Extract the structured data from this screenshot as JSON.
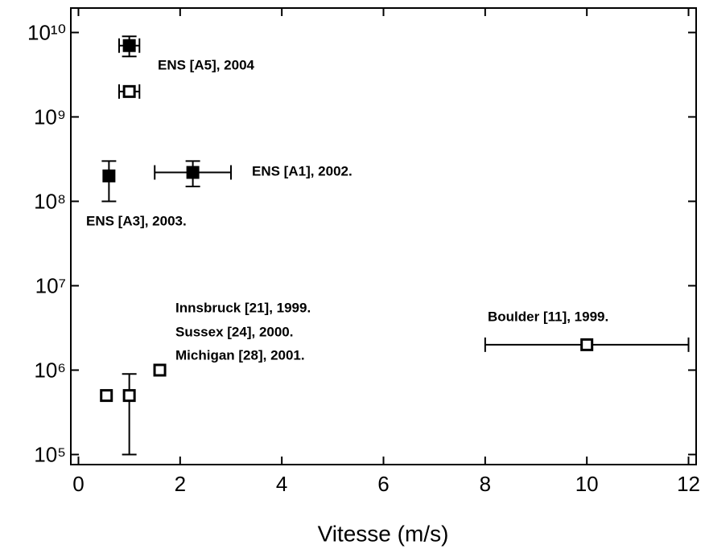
{
  "chart_data": {
    "type": "scatter",
    "x_label": "Vitesse (m/s)",
    "ylog": true,
    "xlim": [
      -0.15,
      12.15
    ],
    "ylim": [
      76000,
      19500000000
    ],
    "xticks": [
      0,
      2,
      4,
      6,
      8,
      10,
      12
    ],
    "yticks": [
      {
        "value": 100000,
        "label": "10⁵"
      },
      {
        "value": 1000000,
        "label": "10⁶"
      },
      {
        "value": 10000000,
        "label": "10⁷"
      },
      {
        "value": 100000000,
        "label": "10⁸"
      },
      {
        "value": 1000000000,
        "label": "10⁹"
      },
      {
        "value": 10000000000,
        "label": "10¹⁰"
      }
    ],
    "series": [
      {
        "color": "#000000",
        "filled": true,
        "x": [
          1.0,
          0.6,
          2.25
        ],
        "values": [
          7000000000,
          200000000,
          220000000
        ],
        "xerr": [
          [
            0.2,
            0.2
          ],
          [
            0,
            0
          ],
          [
            0.75,
            0.75
          ]
        ],
        "yerr": [
          [
            1800000000,
            2000000000
          ],
          [
            100000000,
            100000000
          ],
          [
            70000000,
            80000000
          ]
        ]
      },
      {
        "color": "#000000",
        "filled": false,
        "x": [
          1.0,
          0.55,
          1.0,
          1.6,
          10
        ],
        "values": [
          2000000000,
          500000,
          500000,
          1000000,
          2000000
        ],
        "xerr": [
          [
            0.2,
            0.2
          ],
          [
            0,
            0
          ],
          [
            0,
            0
          ],
          [
            0,
            0
          ],
          [
            2,
            2
          ]
        ],
        "yerr": [
          [
            0,
            0
          ],
          [
            0,
            0
          ],
          [
            400000,
            400000
          ],
          [
            0,
            0
          ],
          [
            0,
            0
          ]
        ]
      }
    ],
    "annotations": [
      "ENS [A5], 2004",
      "ENS [A1], 2002.",
      "ENS [A3], 2003.",
      "Innsbruck [21],  1999.",
      "Sussex [24],  2000.",
      "Michigan [28],  2001.",
      "Boulder [11], 1999."
    ]
  }
}
